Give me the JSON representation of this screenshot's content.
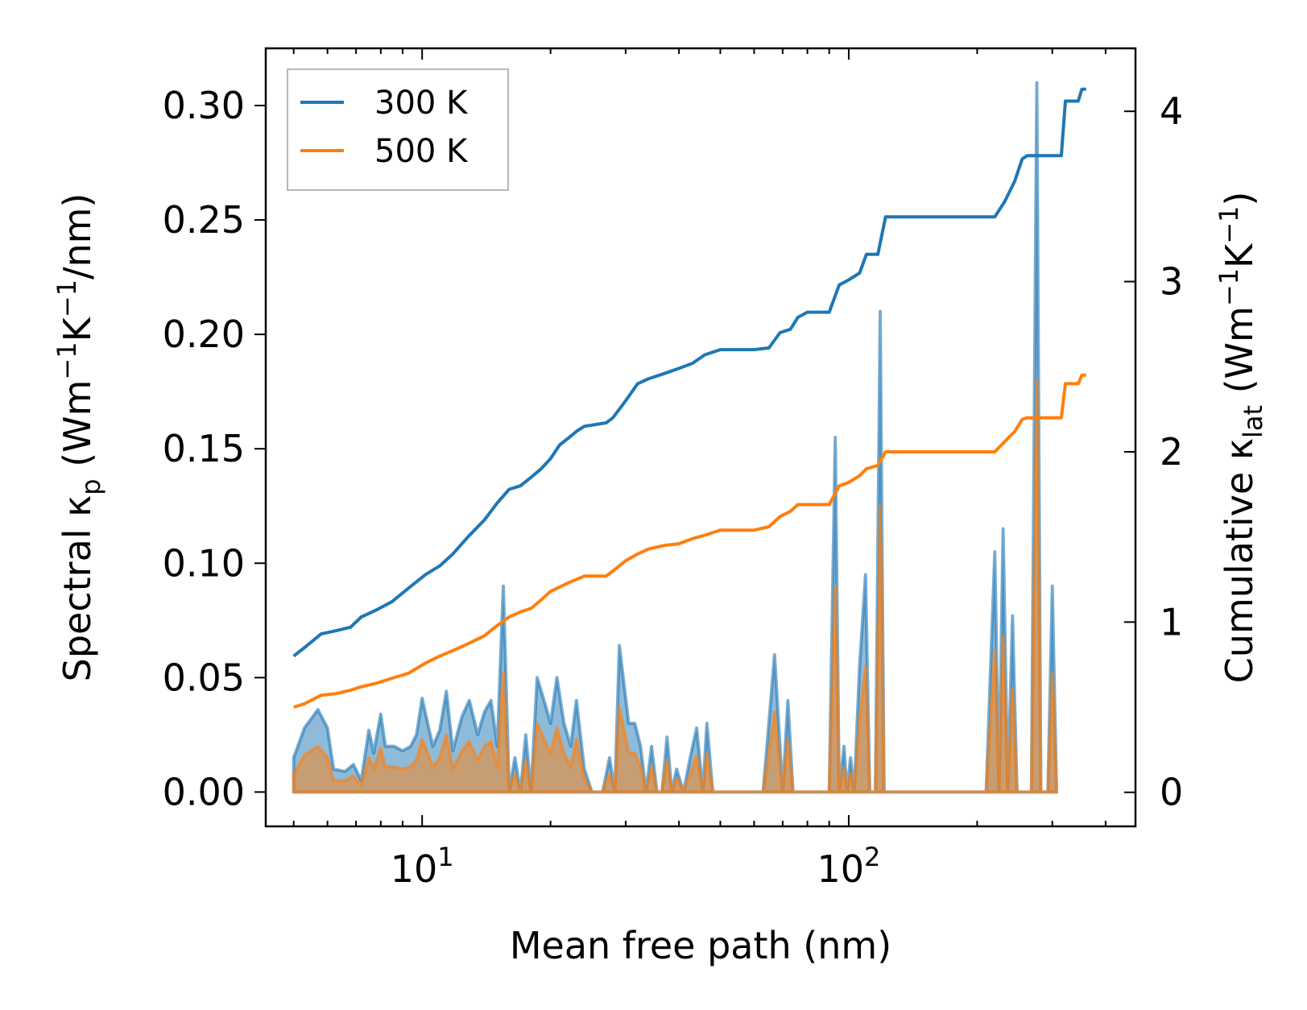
{
  "chart_data": {
    "type": "line",
    "xscale": "log",
    "xlabel": "Mean free path (nm)",
    "xlim": [
      4.3,
      470
    ],
    "x_tick_labels": [
      {
        "base": "10",
        "exp": "1"
      },
      {
        "base": "10",
        "exp": "2"
      }
    ],
    "ylabel_left": {
      "pre": "Spectral κ",
      "sub": "p",
      "mid": " (Wm",
      "sup1": "−1",
      "k": "K",
      "sup2": "−1",
      "post": "/nm)"
    },
    "ylim_left": [
      -0.015,
      0.325
    ],
    "yticks_left": [
      "0.00",
      "0.05",
      "0.10",
      "0.15",
      "0.20",
      "0.25",
      "0.30"
    ],
    "ylabel_right": {
      "pre": "Cumulative κ",
      "sub": "lat",
      "mid": " (Wm",
      "sup1": "−1",
      "k": "K",
      "sup2": "−1",
      "post": ")"
    },
    "ylim_right": [
      -0.2,
      4.37
    ],
    "yticks_right": [
      "0",
      "1",
      "2",
      "3",
      "4"
    ],
    "legend": {
      "position": "top-left",
      "entries": [
        "300 K",
        "500 K"
      ]
    },
    "colors": {
      "300 K": "#1f77b4",
      "500 K": "#ff7f0e"
    },
    "cumulative": [
      {
        "name": "300 K",
        "axis": "right",
        "points": [
          [
            5,
            0.8
          ],
          [
            5.3,
            0.85
          ],
          [
            5.8,
            0.93
          ],
          [
            6.3,
            0.95
          ],
          [
            6.8,
            0.97
          ],
          [
            7.2,
            1.03
          ],
          [
            7.8,
            1.07
          ],
          [
            8.5,
            1.12
          ],
          [
            9.3,
            1.2
          ],
          [
            10.2,
            1.28
          ],
          [
            11,
            1.33
          ],
          [
            11.8,
            1.4
          ],
          [
            12.8,
            1.5
          ],
          [
            14,
            1.6
          ],
          [
            15,
            1.7
          ],
          [
            16,
            1.78
          ],
          [
            17,
            1.8
          ],
          [
            18,
            1.85
          ],
          [
            19,
            1.9
          ],
          [
            20,
            1.96
          ],
          [
            21,
            2.04
          ],
          [
            22,
            2.08
          ],
          [
            23,
            2.12
          ],
          [
            24,
            2.15
          ],
          [
            27,
            2.17
          ],
          [
            28,
            2.2
          ],
          [
            30,
            2.3
          ],
          [
            32,
            2.4
          ],
          [
            34,
            2.43
          ],
          [
            37,
            2.46
          ],
          [
            40,
            2.49
          ],
          [
            43,
            2.52
          ],
          [
            46,
            2.57
          ],
          [
            50,
            2.6
          ],
          [
            60,
            2.6
          ],
          [
            65,
            2.61
          ],
          [
            69,
            2.7
          ],
          [
            73,
            2.72
          ],
          [
            76,
            2.79
          ],
          [
            80,
            2.82
          ],
          [
            90,
            2.82
          ],
          [
            95,
            2.98
          ],
          [
            100,
            3.01
          ],
          [
            106,
            3.05
          ],
          [
            110,
            3.16
          ],
          [
            117,
            3.16
          ],
          [
            122,
            3.38
          ],
          [
            130,
            3.38
          ],
          [
            220,
            3.38
          ],
          [
            232,
            3.47
          ],
          [
            245,
            3.59
          ],
          [
            255,
            3.72
          ],
          [
            262,
            3.74
          ],
          [
            315,
            3.74
          ],
          [
            322,
            4.06
          ],
          [
            345,
            4.06
          ],
          [
            352,
            4.13
          ],
          [
            360,
            4.13
          ]
        ]
      },
      {
        "name": "500 K",
        "axis": "right",
        "points": [
          [
            5,
            0.5
          ],
          [
            5.3,
            0.52
          ],
          [
            5.8,
            0.57
          ],
          [
            6.3,
            0.58
          ],
          [
            6.8,
            0.6
          ],
          [
            7.2,
            0.62
          ],
          [
            7.8,
            0.64
          ],
          [
            8.5,
            0.67
          ],
          [
            9.3,
            0.7
          ],
          [
            10.2,
            0.76
          ],
          [
            11,
            0.8
          ],
          [
            12,
            0.84
          ],
          [
            13,
            0.88
          ],
          [
            14,
            0.92
          ],
          [
            15,
            0.98
          ],
          [
            16,
            1.03
          ],
          [
            17,
            1.06
          ],
          [
            18,
            1.08
          ],
          [
            19,
            1.13
          ],
          [
            20,
            1.18
          ],
          [
            22,
            1.23
          ],
          [
            24,
            1.27
          ],
          [
            27,
            1.27
          ],
          [
            28,
            1.3
          ],
          [
            30,
            1.36
          ],
          [
            32,
            1.4
          ],
          [
            34,
            1.43
          ],
          [
            37,
            1.45
          ],
          [
            40,
            1.46
          ],
          [
            43,
            1.49
          ],
          [
            46,
            1.51
          ],
          [
            50,
            1.54
          ],
          [
            60,
            1.54
          ],
          [
            65,
            1.56
          ],
          [
            69,
            1.62
          ],
          [
            73,
            1.65
          ],
          [
            76,
            1.69
          ],
          [
            80,
            1.69
          ],
          [
            90,
            1.69
          ],
          [
            95,
            1.8
          ],
          [
            100,
            1.82
          ],
          [
            106,
            1.86
          ],
          [
            110,
            1.9
          ],
          [
            117,
            1.92
          ],
          [
            122,
            2.0
          ],
          [
            130,
            2.0
          ],
          [
            220,
            2.0
          ],
          [
            232,
            2.06
          ],
          [
            245,
            2.12
          ],
          [
            255,
            2.19
          ],
          [
            262,
            2.2
          ],
          [
            315,
            2.2
          ],
          [
            322,
            2.4
          ],
          [
            345,
            2.4
          ],
          [
            352,
            2.45
          ],
          [
            360,
            2.45
          ]
        ]
      }
    ],
    "spectral": [
      {
        "name": "300 K",
        "axis": "left",
        "points": [
          [
            5,
            0.015
          ],
          [
            5.3,
            0.028
          ],
          [
            5.7,
            0.036
          ],
          [
            6.0,
            0.028
          ],
          [
            6.2,
            0.01
          ],
          [
            6.6,
            0.009
          ],
          [
            6.9,
            0.012
          ],
          [
            7.2,
            0.005
          ],
          [
            7.5,
            0.027
          ],
          [
            7.7,
            0.017
          ],
          [
            8.0,
            0.034
          ],
          [
            8.2,
            0.02
          ],
          [
            8.6,
            0.02
          ],
          [
            9.0,
            0.018
          ],
          [
            9.4,
            0.02
          ],
          [
            9.7,
            0.025
          ],
          [
            10.0,
            0.041
          ],
          [
            10.3,
            0.03
          ],
          [
            10.6,
            0.02
          ],
          [
            11.0,
            0.027
          ],
          [
            11.4,
            0.044
          ],
          [
            11.8,
            0.018
          ],
          [
            12.4,
            0.033
          ],
          [
            12.9,
            0.04
          ],
          [
            13.5,
            0.025
          ],
          [
            14.0,
            0.035
          ],
          [
            14.5,
            0.04
          ],
          [
            15.0,
            0.02
          ],
          [
            15.5,
            0.09
          ],
          [
            16.0,
            0.0
          ],
          [
            16.5,
            0.015
          ],
          [
            17.0,
            0.0
          ],
          [
            17.5,
            0.025
          ],
          [
            18.0,
            0.0
          ],
          [
            18.6,
            0.05
          ],
          [
            19.3,
            0.04
          ],
          [
            20.0,
            0.03
          ],
          [
            20.7,
            0.05
          ],
          [
            21.5,
            0.03
          ],
          [
            22.3,
            0.02
          ],
          [
            23.0,
            0.04
          ],
          [
            24.0,
            0.01
          ],
          [
            25.0,
            0.0
          ],
          [
            26.5,
            0.0
          ],
          [
            27.5,
            0.015
          ],
          [
            28.3,
            0.0
          ],
          [
            29.0,
            0.064
          ],
          [
            30.5,
            0.03
          ],
          [
            31.5,
            0.03
          ],
          [
            32.5,
            0.02
          ],
          [
            33.5,
            0.0
          ],
          [
            34.5,
            0.02
          ],
          [
            35.5,
            0.0
          ],
          [
            36.5,
            0.0
          ],
          [
            37.5,
            0.024
          ],
          [
            38.5,
            0.0
          ],
          [
            39.5,
            0.01
          ],
          [
            41.0,
            0.0
          ],
          [
            42.5,
            0.015
          ],
          [
            44.0,
            0.028
          ],
          [
            45.5,
            0.0
          ],
          [
            46.5,
            0.03
          ],
          [
            48.0,
            0.0
          ],
          [
            52.0,
            0.0
          ],
          [
            63.0,
            0.0
          ],
          [
            65.0,
            0.03
          ],
          [
            67.0,
            0.06
          ],
          [
            70.0,
            0.0
          ],
          [
            72.0,
            0.04
          ],
          [
            74.0,
            0.0
          ],
          [
            85.0,
            0.0
          ],
          [
            90.0,
            0.0
          ],
          [
            93.0,
            0.155
          ],
          [
            95.0,
            0.0
          ],
          [
            97.5,
            0.02
          ],
          [
            99.0,
            0.0
          ],
          [
            101.0,
            0.015
          ],
          [
            103.0,
            0.0
          ],
          [
            106.0,
            0.055
          ],
          [
            109.5,
            0.095
          ],
          [
            112.0,
            0.0
          ],
          [
            115.5,
            0.0
          ],
          [
            118.5,
            0.21
          ],
          [
            121.0,
            0.0
          ],
          [
            210.0,
            0.0
          ],
          [
            220.0,
            0.105
          ],
          [
            225.0,
            0.0
          ],
          [
            230.0,
            0.115
          ],
          [
            236.0,
            0.0
          ],
          [
            242.0,
            0.077
          ],
          [
            248.0,
            0.0
          ],
          [
            258.0,
            0.0
          ],
          [
            268.0,
            0.0
          ],
          [
            276.0,
            0.31
          ],
          [
            282.0,
            0.0
          ],
          [
            293.0,
            0.0
          ],
          [
            300.0,
            0.09
          ],
          [
            307.0,
            0.0
          ]
        ]
      },
      {
        "name": "500 K",
        "axis": "left",
        "points": [
          [
            5,
            0.008
          ],
          [
            5.3,
            0.016
          ],
          [
            5.7,
            0.02
          ],
          [
            6.0,
            0.015
          ],
          [
            6.2,
            0.005
          ],
          [
            6.6,
            0.005
          ],
          [
            6.9,
            0.007
          ],
          [
            7.2,
            0.003
          ],
          [
            7.5,
            0.015
          ],
          [
            7.7,
            0.01
          ],
          [
            8.0,
            0.019
          ],
          [
            8.2,
            0.011
          ],
          [
            8.6,
            0.011
          ],
          [
            9.0,
            0.01
          ],
          [
            9.4,
            0.011
          ],
          [
            9.7,
            0.014
          ],
          [
            10.0,
            0.023
          ],
          [
            10.3,
            0.017
          ],
          [
            10.6,
            0.011
          ],
          [
            11.0,
            0.015
          ],
          [
            11.4,
            0.025
          ],
          [
            11.8,
            0.01
          ],
          [
            12.4,
            0.018
          ],
          [
            12.9,
            0.022
          ],
          [
            13.5,
            0.014
          ],
          [
            14.0,
            0.02
          ],
          [
            14.5,
            0.022
          ],
          [
            15.0,
            0.011
          ],
          [
            15.5,
            0.052
          ],
          [
            16.0,
            0.0
          ],
          [
            16.5,
            0.008
          ],
          [
            17.0,
            0.0
          ],
          [
            17.5,
            0.014
          ],
          [
            18.0,
            0.0
          ],
          [
            18.6,
            0.03
          ],
          [
            19.3,
            0.023
          ],
          [
            20.0,
            0.017
          ],
          [
            20.7,
            0.028
          ],
          [
            21.5,
            0.017
          ],
          [
            22.3,
            0.011
          ],
          [
            23.0,
            0.023
          ],
          [
            24.0,
            0.006
          ],
          [
            25.0,
            0.0
          ],
          [
            26.5,
            0.0
          ],
          [
            27.5,
            0.008
          ],
          [
            28.3,
            0.0
          ],
          [
            29.0,
            0.037
          ],
          [
            30.5,
            0.017
          ],
          [
            31.5,
            0.017
          ],
          [
            32.5,
            0.011
          ],
          [
            33.5,
            0.0
          ],
          [
            34.5,
            0.011
          ],
          [
            35.5,
            0.0
          ],
          [
            36.5,
            0.0
          ],
          [
            37.5,
            0.014
          ],
          [
            38.5,
            0.0
          ],
          [
            39.5,
            0.006
          ],
          [
            41.0,
            0.0
          ],
          [
            42.5,
            0.008
          ],
          [
            44.0,
            0.016
          ],
          [
            45.5,
            0.0
          ],
          [
            46.5,
            0.017
          ],
          [
            48.0,
            0.0
          ],
          [
            52.0,
            0.0
          ],
          [
            63.0,
            0.0
          ],
          [
            65.0,
            0.017
          ],
          [
            67.0,
            0.035
          ],
          [
            70.0,
            0.0
          ],
          [
            72.0,
            0.023
          ],
          [
            74.0,
            0.0
          ],
          [
            85.0,
            0.0
          ],
          [
            90.0,
            0.0
          ],
          [
            93.0,
            0.09
          ],
          [
            95.0,
            0.0
          ],
          [
            97.5,
            0.011
          ],
          [
            99.0,
            0.0
          ],
          [
            101.0,
            0.008
          ],
          [
            103.0,
            0.0
          ],
          [
            106.0,
            0.032
          ],
          [
            109.5,
            0.055
          ],
          [
            112.0,
            0.0
          ],
          [
            115.5,
            0.0
          ],
          [
            118.5,
            0.125
          ],
          [
            121.0,
            0.0
          ],
          [
            210.0,
            0.0
          ],
          [
            220.0,
            0.062
          ],
          [
            225.0,
            0.0
          ],
          [
            230.0,
            0.068
          ],
          [
            236.0,
            0.0
          ],
          [
            242.0,
            0.045
          ],
          [
            248.0,
            0.0
          ],
          [
            258.0,
            0.0
          ],
          [
            268.0,
            0.0
          ],
          [
            276.0,
            0.18
          ],
          [
            282.0,
            0.0
          ],
          [
            293.0,
            0.0
          ],
          [
            300.0,
            0.052
          ],
          [
            307.0,
            0.0
          ]
        ]
      }
    ]
  }
}
